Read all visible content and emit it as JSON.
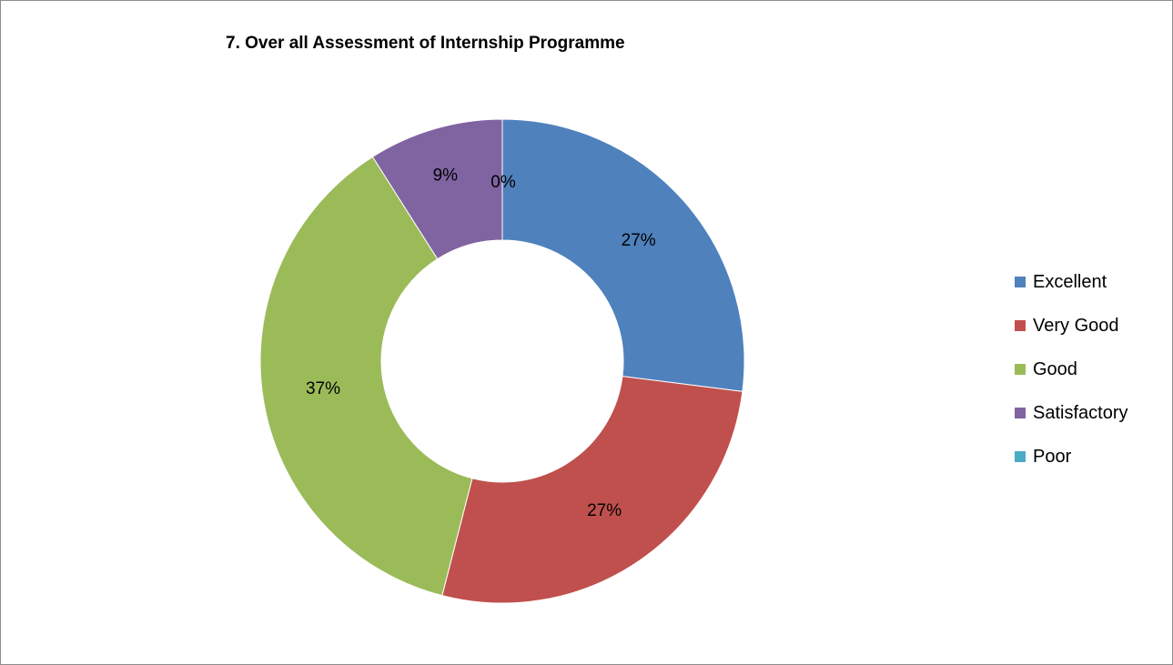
{
  "chart_data": {
    "type": "pie",
    "variant": "donut",
    "title": "7. Over all Assessment of Internship Programme",
    "legend_position": "right",
    "slices": [
      {
        "label": "Excellent",
        "value": 27,
        "display": "27%",
        "color": "#4f81bd"
      },
      {
        "label": "Very Good",
        "value": 27,
        "display": "27%",
        "color": "#c0504d"
      },
      {
        "label": "Good",
        "value": 37,
        "display": "37%",
        "color": "#9bbb59"
      },
      {
        "label": "Satisfactory",
        "value": 9,
        "display": "9%",
        "color": "#8064a2"
      },
      {
        "label": "Poor",
        "value": 0,
        "display": "0%",
        "color": "#4bacc6"
      }
    ]
  }
}
